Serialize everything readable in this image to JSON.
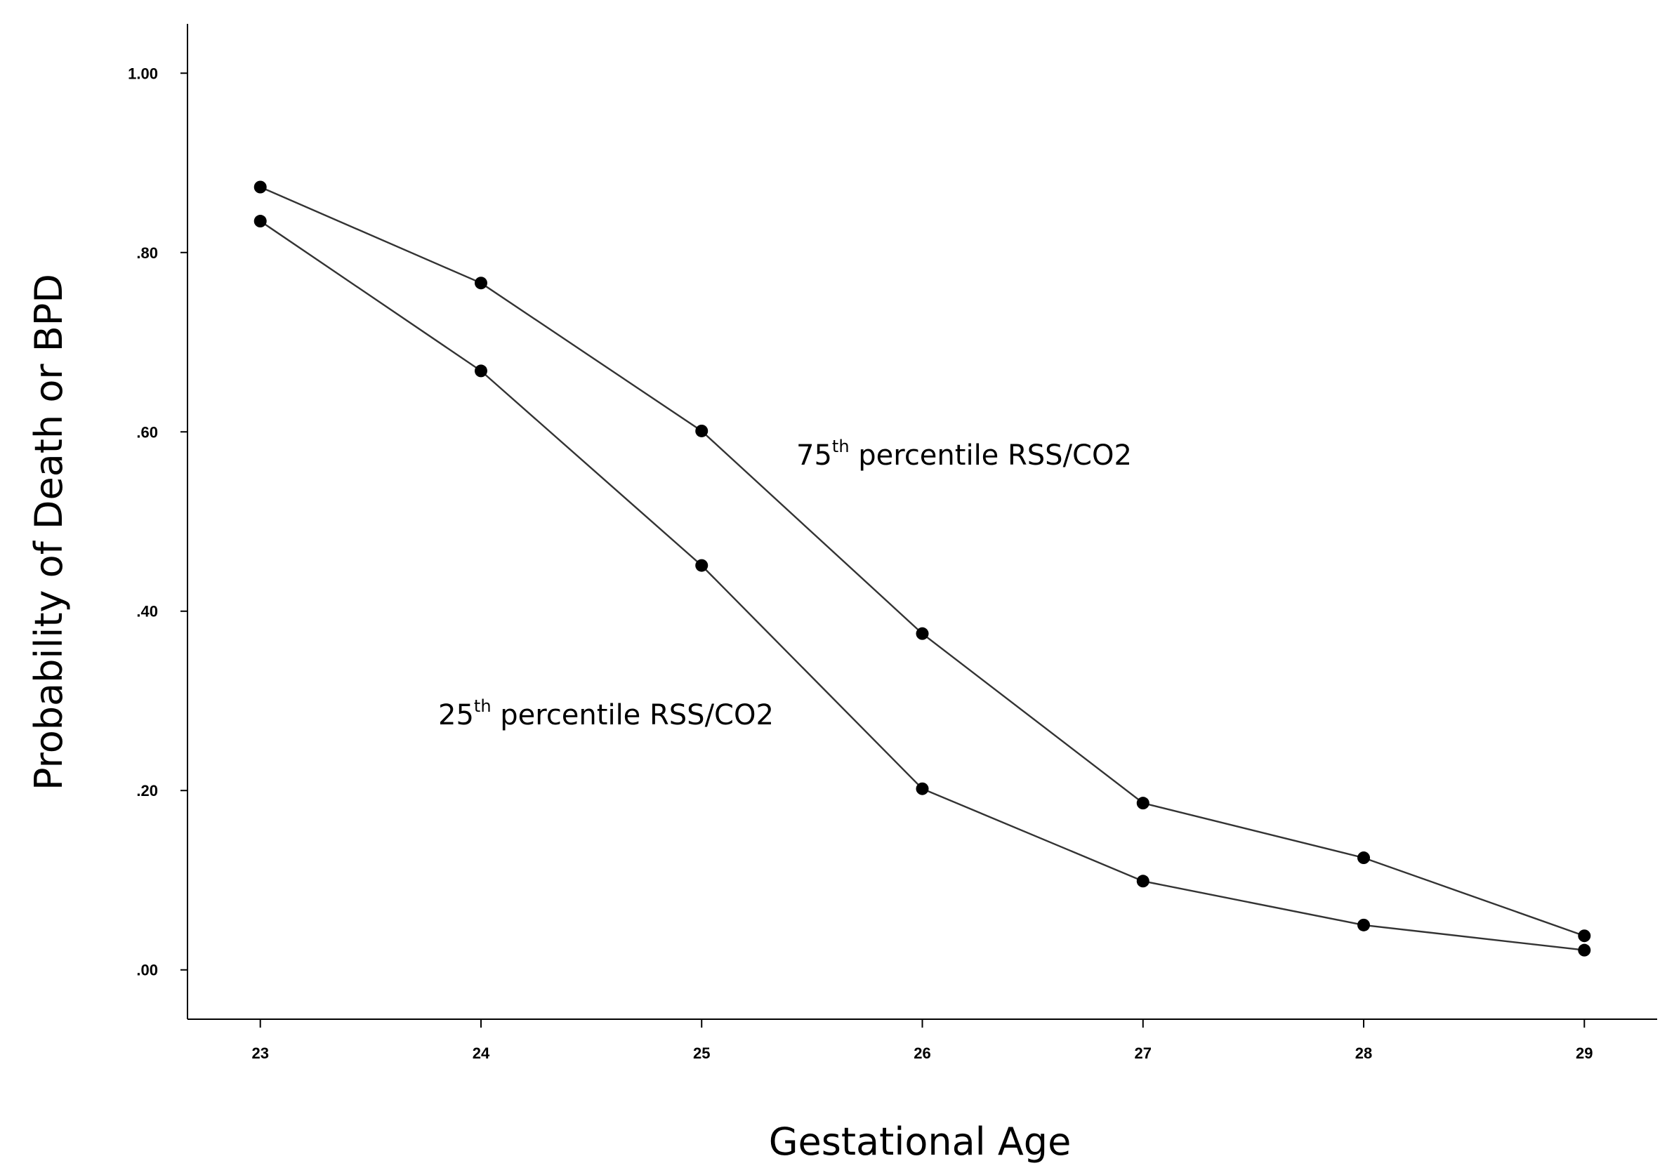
{
  "chart_data": {
    "type": "line",
    "title": "",
    "xlabel": "Gestational Age",
    "ylabel": "Probability of Death or BPD",
    "x": [
      23,
      24,
      25,
      26,
      27,
      28,
      29
    ],
    "x_tick_labels": [
      "23",
      "24",
      "25",
      "26",
      "27",
      "28",
      "29"
    ],
    "y_tick_labels": [
      ".00",
      ".20",
      ".40",
      ".60",
      ".80",
      "1.00"
    ],
    "y_ticks": [
      0,
      0.2,
      0.4,
      0.6,
      0.8,
      1.0
    ],
    "xlim": [
      22.67,
      29.33
    ],
    "ylim": [
      -0.055,
      1.055
    ],
    "grid": false,
    "legend": "none",
    "series": [
      {
        "label_number": "75",
        "label_sup": "th",
        "label_rest": " percentile RSS/CO2",
        "values": [
          0.873,
          0.766,
          0.601,
          0.375,
          0.186,
          0.125,
          0.038
        ]
      },
      {
        "label_number": "25",
        "label_sup": "th",
        "label_rest": " percentile RSS/CO2",
        "values": [
          0.835,
          0.668,
          0.451,
          0.202,
          0.099,
          0.05,
          0.022
        ]
      }
    ],
    "colors": {
      "line": "#333333",
      "marker": "#000000",
      "axis": "#000000"
    }
  }
}
